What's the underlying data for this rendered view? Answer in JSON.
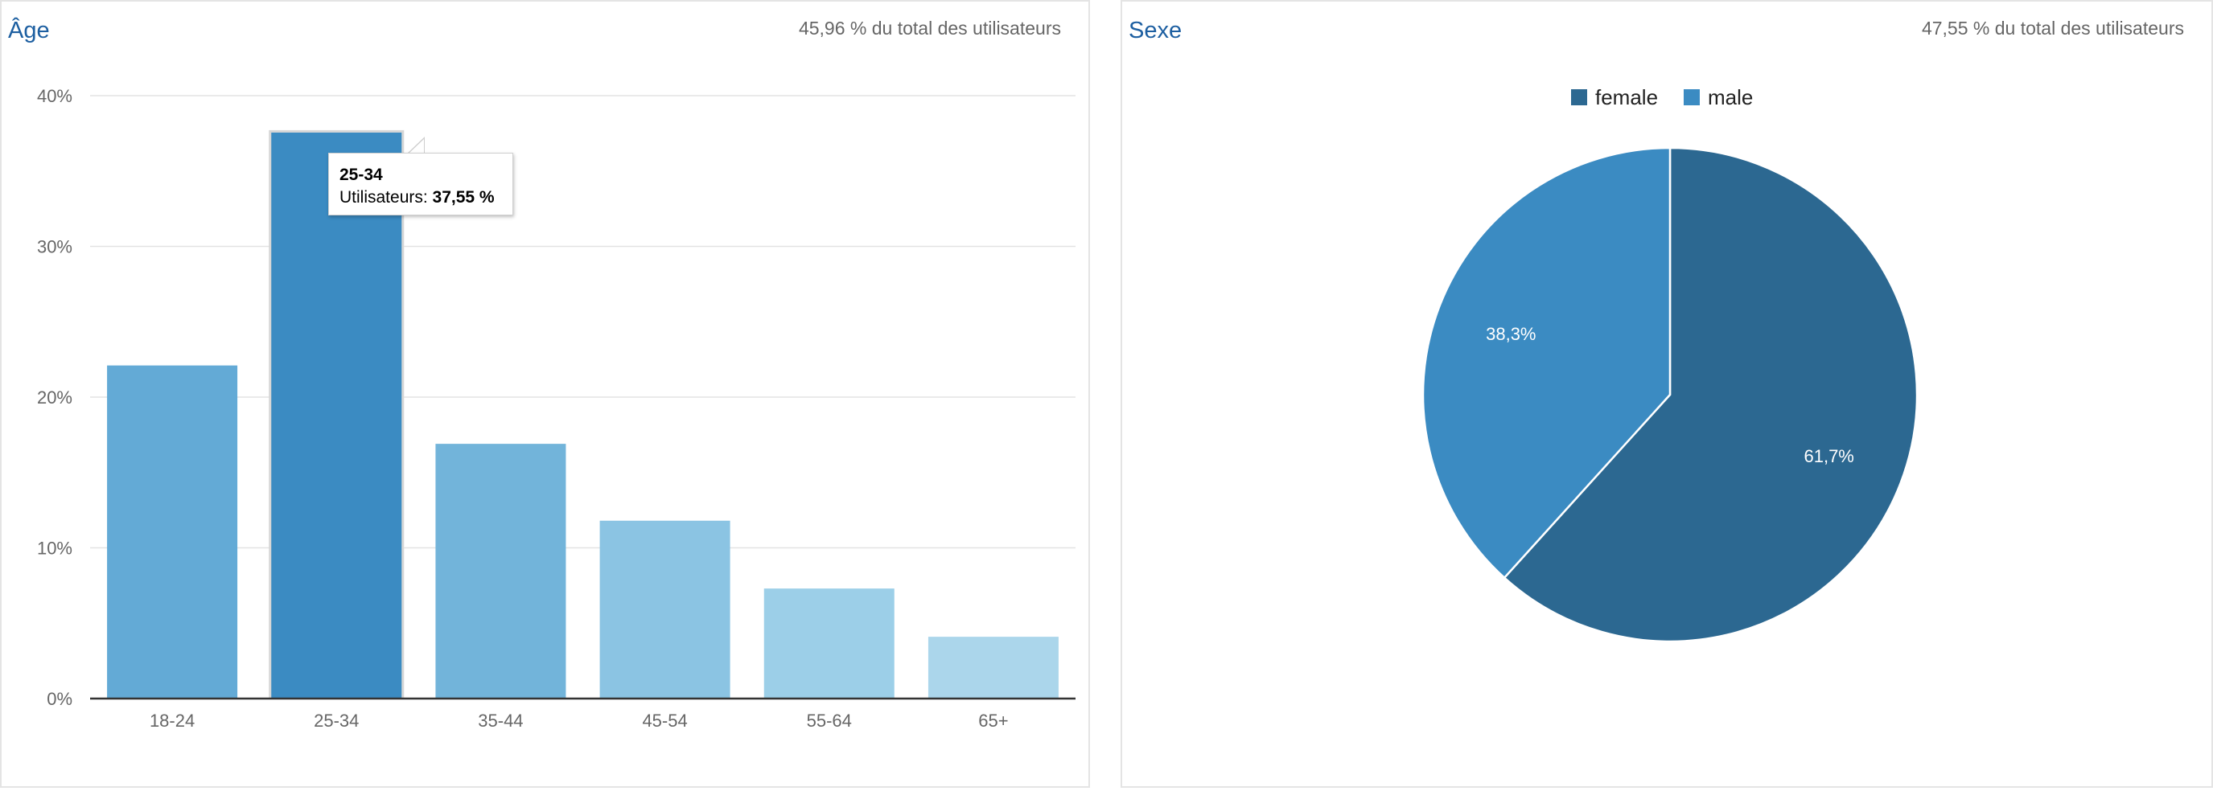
{
  "age_panel": {
    "title": "Âge",
    "subtitle": "45,96 % du total des utilisateurs"
  },
  "sex_panel": {
    "title": "Sexe",
    "subtitle": "47,55 % du total des utilisateurs"
  },
  "tooltip": {
    "category": "25-34",
    "label": "Utilisateurs: ",
    "value": "37,55 %"
  },
  "chart_data": [
    {
      "type": "bar",
      "title": "Âge",
      "categories": [
        "18-24",
        "25-34",
        "35-44",
        "45-54",
        "55-64",
        "65+"
      ],
      "values": [
        22.1,
        37.55,
        16.9,
        11.8,
        7.3,
        4.1
      ],
      "ylim": [
        0,
        40
      ],
      "yticks": [
        0,
        10,
        20,
        30,
        40
      ],
      "ytick_labels": [
        "0%",
        "10%",
        "20%",
        "30%",
        "40%"
      ],
      "colors": [
        "#63aad6",
        "#3b8bc2",
        "#72b4da",
        "#8bc4e3",
        "#9ccfe8",
        "#abd6eb"
      ],
      "highlighted_category": "25-34",
      "grid": true,
      "legend": "none"
    },
    {
      "type": "pie",
      "title": "Sexe",
      "categories": [
        "female",
        "male"
      ],
      "values": [
        61.7,
        38.3
      ],
      "value_labels": [
        "61,7%",
        "38,3%"
      ],
      "colors": [
        "#2c6891",
        "#3b8bc2"
      ],
      "legend": "top-center"
    }
  ]
}
